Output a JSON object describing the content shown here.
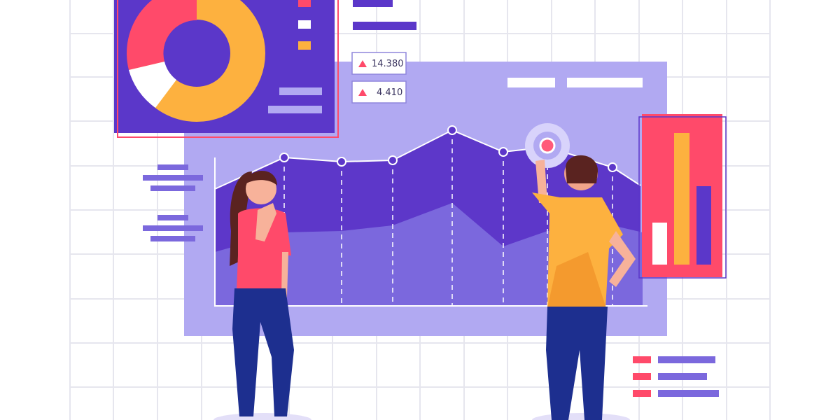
{
  "stats": [
    {
      "value": "14.380",
      "trend": "up"
    },
    {
      "value": "4.410",
      "trend": "up"
    }
  ],
  "icons": {
    "trend": "triangle-up-icon"
  },
  "colors": {
    "background": "#ffffff",
    "grid": "#e6e6ee",
    "panel_light": "#b1a9f2",
    "panel_dark": "#5b37c9",
    "area_dark": "#5d37c9",
    "area_light": "#7b68dd",
    "accent_pink": "#ff4a6a",
    "accent_orange": "#fdb13f",
    "skin": "#f7b29a",
    "pants": "#1d2f8f"
  }
}
